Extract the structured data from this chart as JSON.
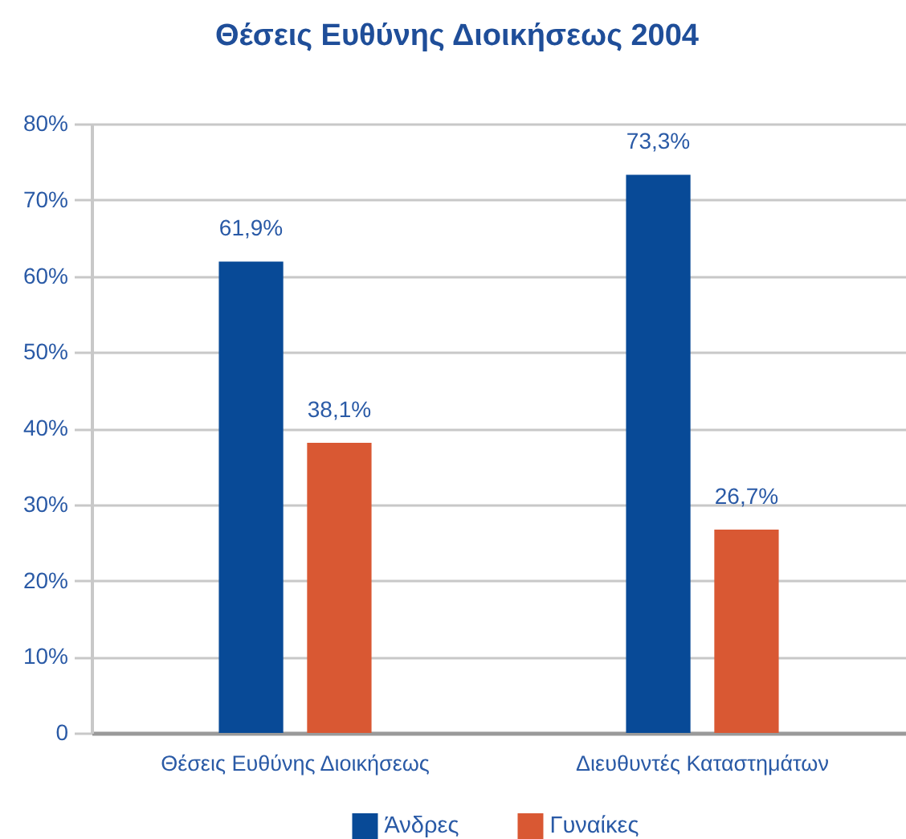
{
  "chart_data": {
    "type": "bar",
    "title": "Θέσεις Ευθύνης Διοικήσεως 2004",
    "categories": [
      "Θέσεις Ευθύνης Διοικήσεως",
      "Διευθυντές Καταστημάτων"
    ],
    "series": [
      {
        "name": "Άνδρες",
        "color": "#084a97",
        "values": [
          61.9,
          73.3
        ],
        "value_labels": [
          "61,9%",
          "73,3%"
        ]
      },
      {
        "name": "Γυναίκες",
        "color": "#d95833",
        "values": [
          38.1,
          26.7
        ],
        "value_labels": [
          "38,1%",
          "26,7%"
        ]
      }
    ],
    "ylim": [
      0,
      80
    ],
    "yticks": [
      0,
      {
        "value": 10,
        "label": "10%"
      },
      {
        "value": 20,
        "label": "20%"
      },
      {
        "value": 30,
        "label": "30%"
      },
      {
        "value": 40,
        "label": "40%"
      },
      {
        "value": 50,
        "label": "50%"
      },
      {
        "value": 60,
        "label": "60%"
      },
      {
        "value": 70,
        "label": "70%"
      },
      {
        "value": 80,
        "label": "80%"
      }
    ],
    "grid": "y",
    "legend": "bottom"
  }
}
